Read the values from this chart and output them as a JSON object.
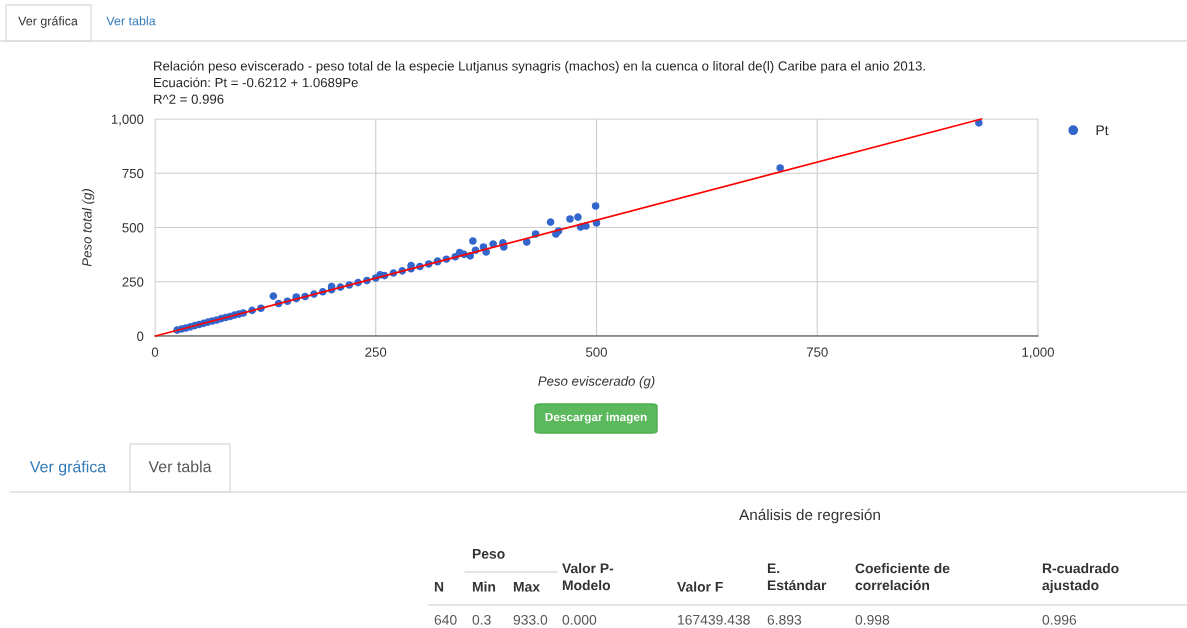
{
  "chart_data": {
    "type": "scatter",
    "title": "Relación peso eviscerado - peso total de la especie Lutjanus synagris (machos) en la cuenca o litoral de(l) Caribe para el anio 2013.",
    "subtitle": "Ecuación: Pt = -0.6212 + 1.0689Pe\nR^2 = 0.996",
    "xlabel": "Peso eviscerado (g)",
    "ylabel": "Peso total (g)",
    "series": [
      {
        "name": "Pt",
        "color": "#3366cc",
        "marker": "circle",
        "x": [
          25,
          30,
          35,
          40,
          45,
          50,
          55,
          60,
          65,
          70,
          75,
          80,
          85,
          90,
          95,
          100,
          110,
          120,
          134,
          140,
          150,
          160,
          160,
          170,
          180,
          190,
          200,
          200,
          210,
          220,
          230,
          240,
          250,
          255,
          260,
          270,
          280,
          290,
          290,
          300,
          310,
          320,
          320,
          330,
          340,
          345,
          350,
          357,
          360,
          363,
          372,
          375,
          383,
          394,
          395,
          421,
          431,
          448,
          454,
          457,
          470,
          479,
          482,
          488,
          499,
          500,
          708,
          933
        ],
        "values": [
          27,
          32,
          37,
          42,
          48,
          53,
          58,
          64,
          69,
          74,
          80,
          85,
          90,
          96,
          101,
          106,
          118,
          128,
          184,
          150,
          160,
          172,
          180,
          182,
          193,
          204,
          213,
          228,
          225,
          235,
          246,
          256,
          267,
          282,
          278,
          290,
          300,
          310,
          325,
          320,
          332,
          342,
          345,
          354,
          365,
          385,
          376,
          369,
          438,
          395,
          410,
          387,
          424,
          429,
          410,
          433,
          470,
          525,
          470,
          484,
          539,
          548,
          502,
          507,
          599,
          521,
          774,
          982
        ]
      },
      {
        "type": "line",
        "marker": "none",
        "color": "#ff0000",
        "x": [
          0.58,
          936
        ],
        "values": [
          0,
          1000
        ]
      }
    ],
    "xlim": [
      0,
      1000
    ],
    "ylim": [
      0,
      1000
    ],
    "xticks": [
      0,
      250,
      500,
      750,
      {
        "value": 1000,
        "label": "1,000"
      }
    ],
    "yticks": [
      0,
      250,
      500,
      750,
      {
        "value": 1000,
        "label": "1,000"
      }
    ],
    "grid": true,
    "legend": "top right",
    "annotations": [
      "Ver gráfica",
      "Ver tabla",
      "Descargar imagen",
      "Ver gráfica",
      "Ver tabla",
      "Análisis de regresión",
      "Peso",
      "N",
      "Min",
      "Max",
      "Valor P-\nModelo",
      "Valor F",
      "E.\nEstándar",
      "Coeficiente de\ncorrelación",
      "R-cuadrado\najustado",
      "640",
      "0.3",
      "933.0",
      "0.000",
      "167439.438",
      "6.893",
      "0.998",
      "0.996"
    ]
  }
}
